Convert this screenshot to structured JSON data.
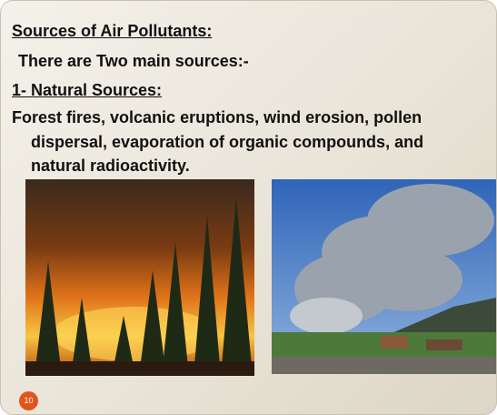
{
  "slide": {
    "title": "Sources of Air Pollutants:",
    "intro": "There are Two main sources:-",
    "heading": "1- Natural Sources:",
    "body": {
      "lines": [
        "Forest fires, volcanic eruptions, wind erosion, pollen",
        "dispersal, evaporation of organic compounds, and",
        "natural radioactivity."
      ]
    },
    "page_number": "10"
  }
}
